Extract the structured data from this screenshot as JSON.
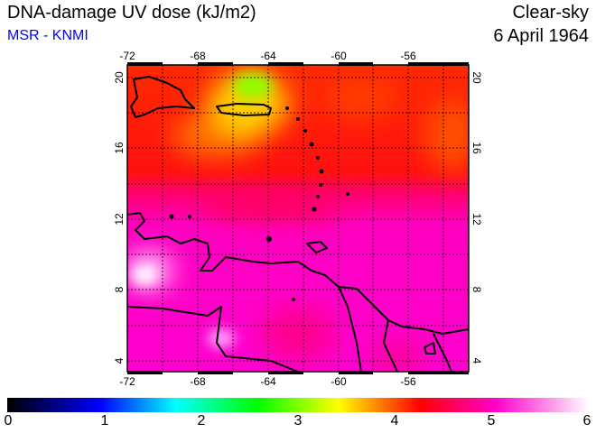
{
  "header": {
    "title": "DNA-damage UV dose (kJ/m2)",
    "source": "MSR - KNMI",
    "sky_condition": "Clear-sky",
    "date": "6 April 1964"
  },
  "map": {
    "lon_ticks": [
      "-72",
      "-68",
      "-64",
      "-60",
      "-56"
    ],
    "lat_ticks": [
      "4",
      "8",
      "12",
      "16",
      "20"
    ],
    "region": "Caribbean / northern South America"
  },
  "colorbar": {
    "labels": [
      "0",
      "1",
      "2",
      "3",
      "4",
      "5",
      "6"
    ],
    "colors": [
      "#000000",
      "#0000ff",
      "#00ffff",
      "#00ff00",
      "#ffff00",
      "#ff0000",
      "#ff00cc",
      "#ffffff"
    ]
  }
}
